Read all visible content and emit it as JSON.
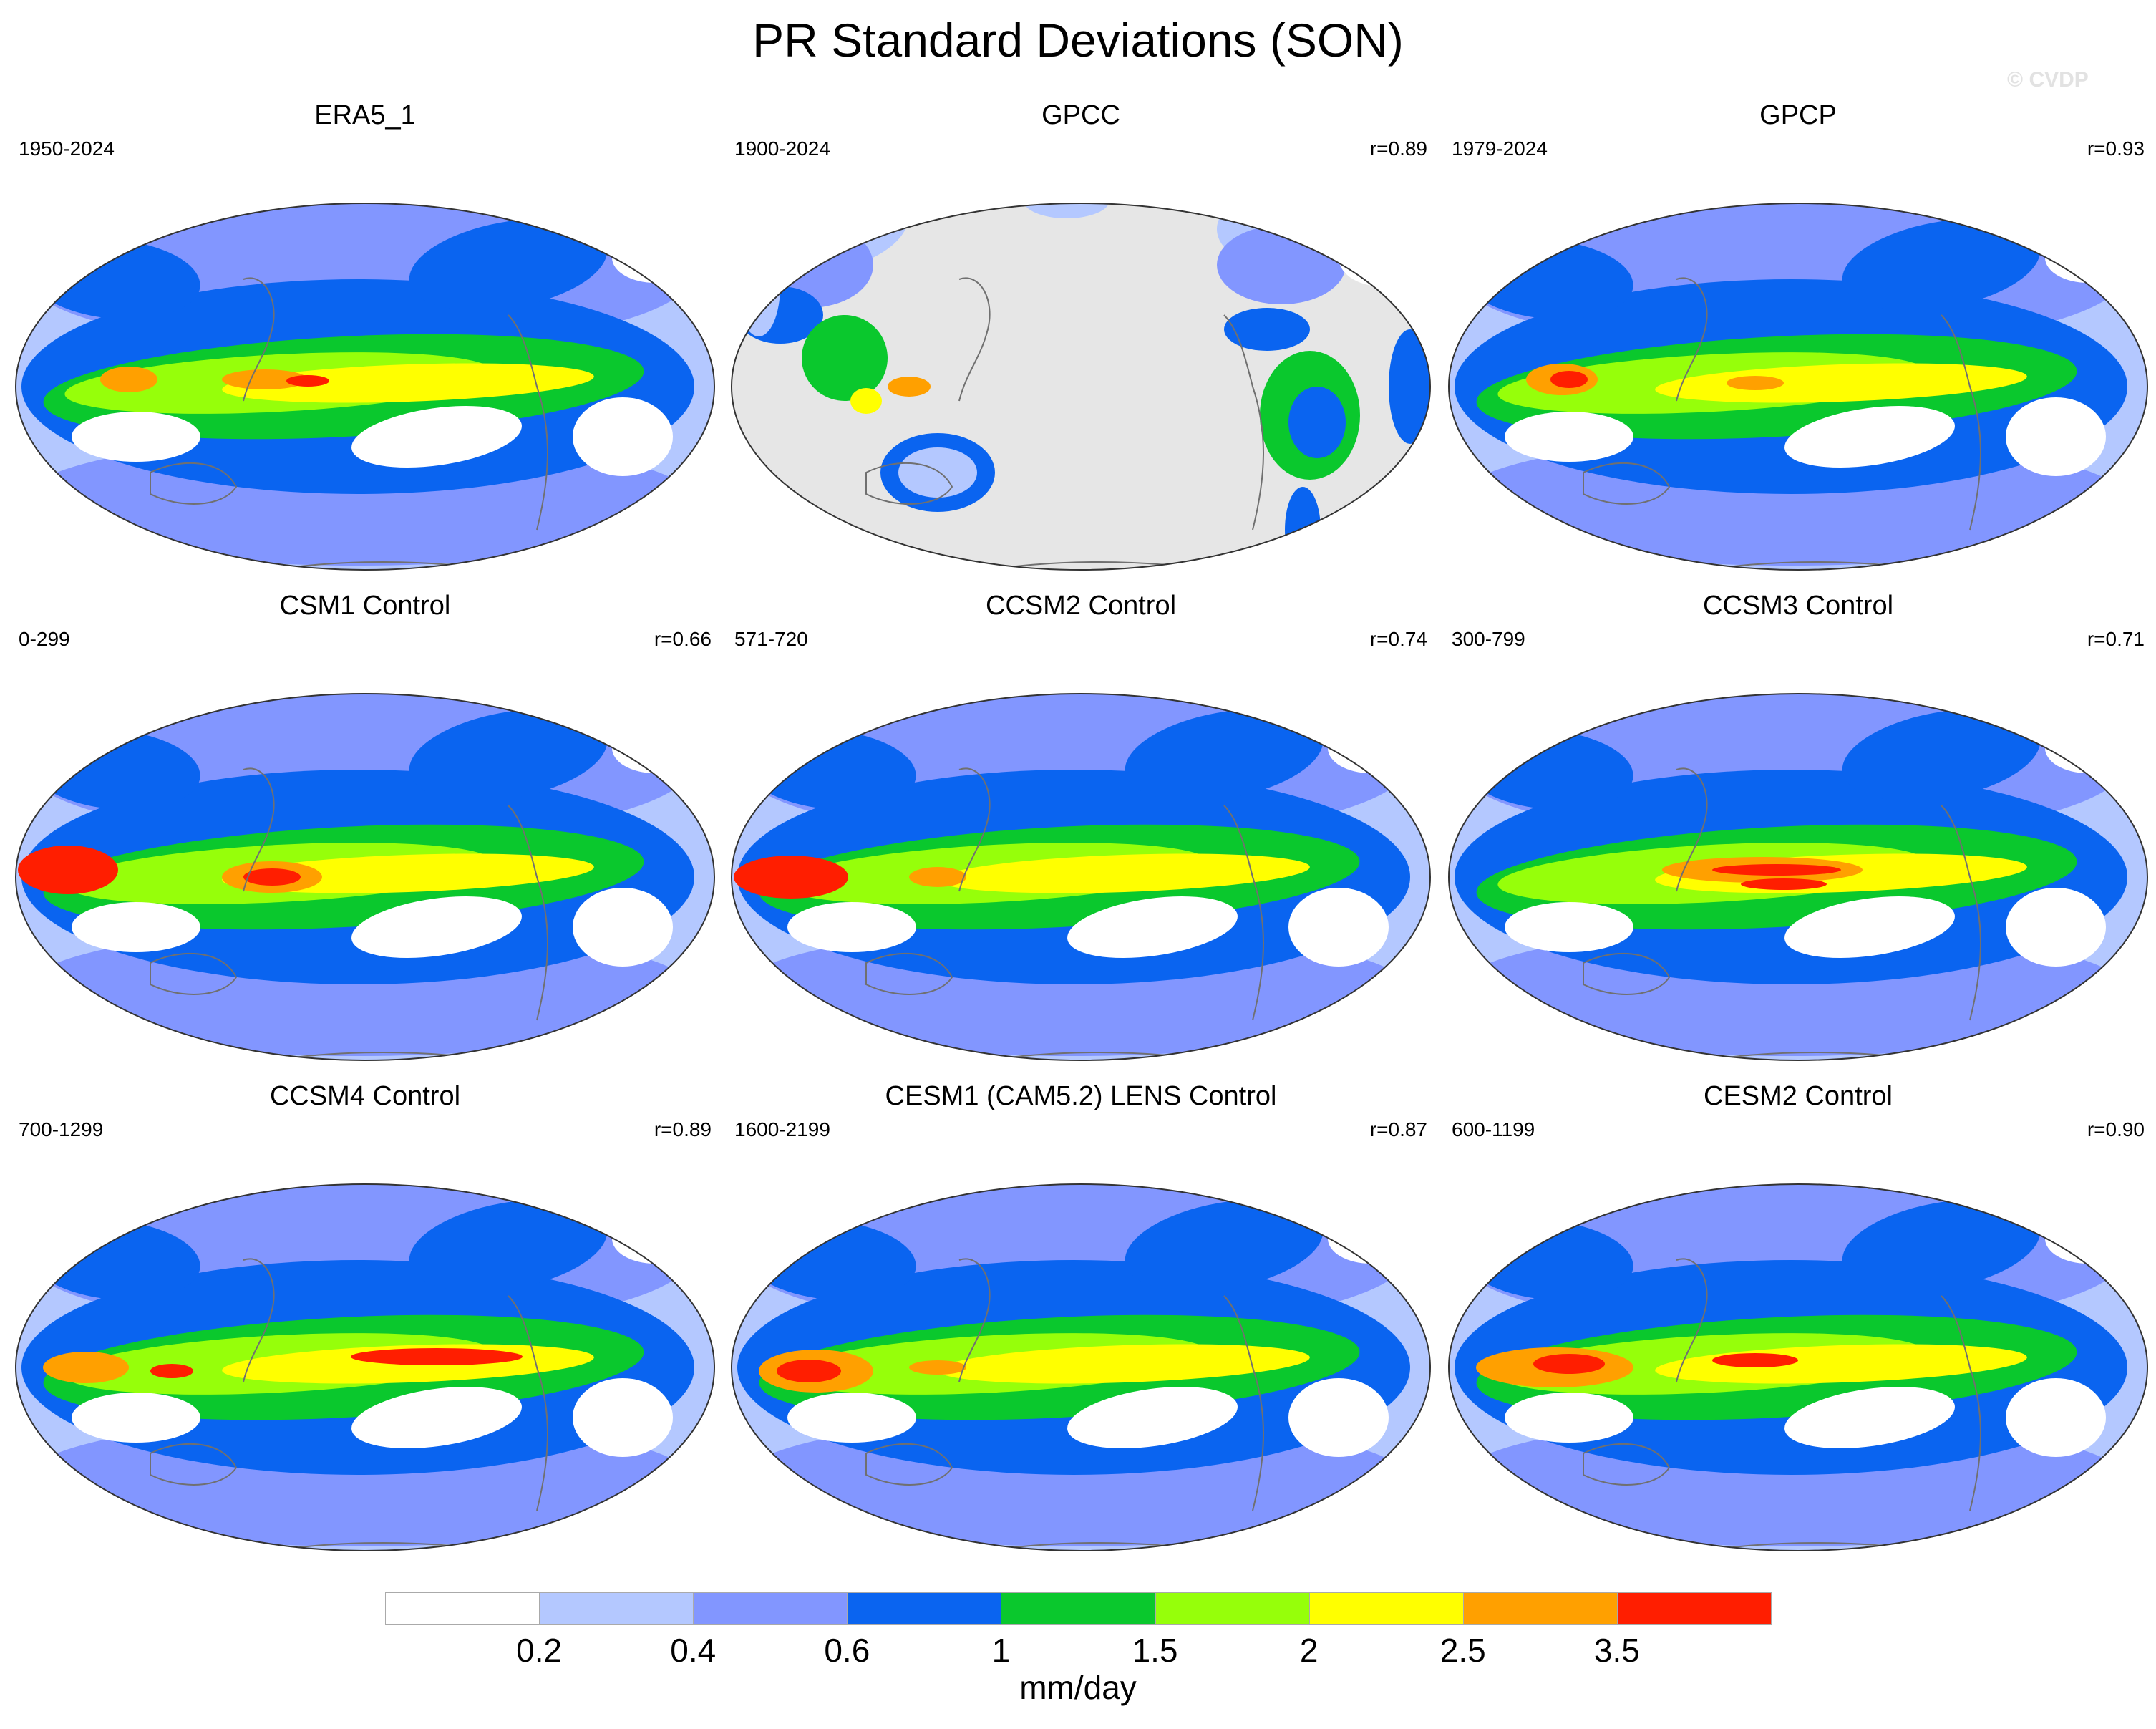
{
  "title": "PR Standard Deviations (SON)",
  "watermark": "© CVDP",
  "panels": [
    {
      "title": "ERA5_1",
      "years": "1950-2024",
      "r": ""
    },
    {
      "title": "GPCC",
      "years": "1900-2024",
      "r": "r=0.89"
    },
    {
      "title": "GPCP",
      "years": "1979-2024",
      "r": "r=0.93"
    },
    {
      "title": "CSM1 Control",
      "years": "0-299",
      "r": "r=0.66"
    },
    {
      "title": "CCSM2 Control",
      "years": "571-720",
      "r": "r=0.74"
    },
    {
      "title": "CCSM3 Control",
      "years": "300-799",
      "r": "r=0.71"
    },
    {
      "title": "CCSM4 Control",
      "years": "700-1299",
      "r": "r=0.89"
    },
    {
      "title": "CESM1 (CAM5.2) LENS Control",
      "years": "1600-2199",
      "r": "r=0.87"
    },
    {
      "title": "CESM2 Control",
      "years": "600-1199",
      "r": "r=0.90"
    }
  ],
  "colorbar": {
    "colors": [
      "#ffffff",
      "#b4c8ff",
      "#8296ff",
      "#0a64f0",
      "#0ac82d",
      "#96ff0a",
      "#ffff00",
      "#ffa000",
      "#ff1e00"
    ],
    "labels": [
      "0.2",
      "0.4",
      "0.6",
      "1",
      "1.5",
      "2",
      "2.5",
      "3.5"
    ],
    "unit": "mm/day"
  },
  "colors": {
    "land_missing": "#e6e6e6",
    "coastline": "#707070",
    "outline": "#333333"
  }
}
